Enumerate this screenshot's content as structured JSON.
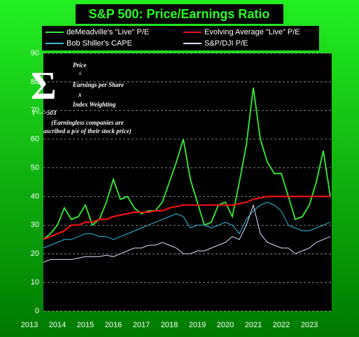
{
  "chart_data": {
    "type": "line",
    "title": "S&P 500:  Price/Earnings Ratio",
    "x": [
      2013.5,
      2013.75,
      2014,
      2014.25,
      2014.5,
      2014.75,
      2015,
      2015.25,
      2015.5,
      2015.75,
      2016,
      2016.25,
      2016.5,
      2016.75,
      2017,
      2017.25,
      2017.5,
      2017.75,
      2018,
      2018.25,
      2018.5,
      2018.75,
      2019,
      2019.25,
      2019.5,
      2019.75,
      2020,
      2020.25,
      2020.5,
      2020.75,
      2021,
      2021.25,
      2021.5,
      2021.75,
      2022,
      2022.25,
      2022.5,
      2022.75,
      2023,
      2023.25,
      2023.5,
      2023.75
    ],
    "series": [
      {
        "name": "deMeadville's \"Live\" P/E",
        "color": "#33ee33",
        "values": [
          25,
          27,
          30,
          36,
          32,
          33,
          37,
          30,
          32,
          38,
          46,
          39,
          40,
          36,
          34,
          35,
          35,
          38,
          45,
          52,
          60,
          46,
          38,
          30,
          31,
          37,
          38,
          33,
          45,
          58,
          78,
          60,
          52,
          48,
          48,
          40,
          32,
          33,
          37,
          45,
          56,
          40
        ]
      },
      {
        "name": "Evolving Average \"Live\" P/E",
        "color": "#ee1111",
        "values": [
          25,
          26,
          27,
          28,
          30,
          30,
          31,
          31,
          32,
          32,
          33,
          33.5,
          34,
          34.5,
          34.5,
          34.5,
          35,
          35,
          36,
          36.5,
          37,
          37,
          37,
          37,
          37,
          37,
          37,
          37,
          37.5,
          38,
          39,
          39.5,
          40,
          40,
          40,
          40,
          40,
          40,
          40,
          40,
          40,
          40
        ]
      },
      {
        "name": "Bob Shiller's CAPE",
        "color": "#33bbdd",
        "values": [
          22,
          23,
          24,
          25,
          25,
          26,
          27,
          27,
          26,
          26,
          25,
          26,
          27,
          28,
          29,
          30,
          31,
          32,
          33,
          34,
          33,
          29,
          30,
          30,
          29,
          30,
          31,
          30,
          27,
          32,
          35,
          37,
          38,
          37,
          35,
          30,
          29,
          28,
          28,
          29,
          30,
          31
        ]
      },
      {
        "name": "S&P/DJI P/E",
        "color": "#dde0ff",
        "values": [
          17,
          18,
          18,
          18,
          18,
          18.5,
          19,
          19,
          19,
          19.5,
          19,
          20,
          21,
          22,
          22,
          23,
          23,
          24,
          23,
          22,
          20,
          20,
          21,
          21,
          22,
          23,
          24,
          26,
          25,
          30,
          37,
          27,
          24,
          23,
          22,
          22,
          20,
          21,
          22,
          24,
          25,
          26
        ]
      }
    ],
    "xlim": [
      2013,
      2023.8
    ],
    "xticks": [
      2013,
      2014,
      2015,
      2016,
      2017,
      2018,
      2019,
      2020,
      2021,
      2022,
      2023
    ],
    "ylim": [
      0,
      90
    ],
    "yticks": [
      0,
      10,
      20,
      30,
      40,
      50,
      60,
      70,
      80,
      90
    ],
    "grid": true,
    "annotations": [
      "Σ",
      "Price",
      "÷",
      "Earnings per Share",
      "x",
      "Index Weighting",
      "1 --->503",
      "(Earningless companies are",
      "ascribed a p/e of their stock price)"
    ]
  }
}
